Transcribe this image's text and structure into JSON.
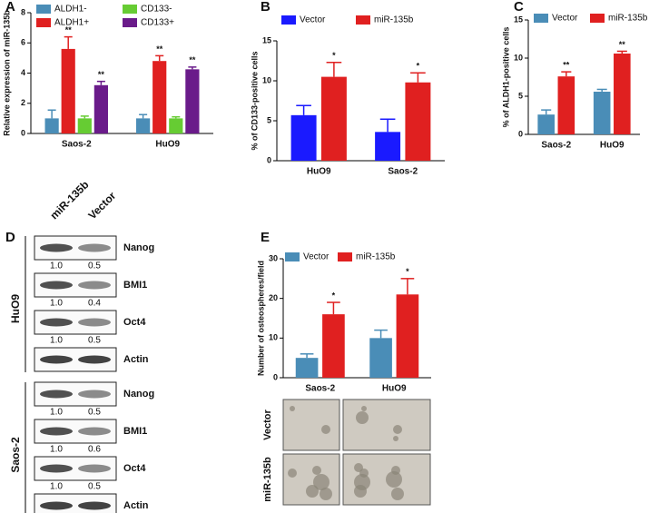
{
  "chart_data": [
    {
      "type": "bar",
      "label": "A",
      "y_label": "Relative expression of miR-135b",
      "categories": [
        "Saos-2",
        "HuO9"
      ],
      "series": [
        {
          "name": "ALDH1-",
          "color": "#4a8db7",
          "values": [
            1.0,
            1.0
          ],
          "errors": [
            0.55,
            0.25
          ],
          "sig": [
            null,
            null
          ]
        },
        {
          "name": "ALDH1+",
          "color": "#e02020",
          "values": [
            5.6,
            4.8
          ],
          "errors": [
            0.8,
            0.35
          ],
          "sig": [
            "**",
            "**"
          ]
        },
        {
          "name": "CD133-",
          "color": "#66cc33",
          "values": [
            1.0,
            1.0
          ],
          "errors": [
            0.15,
            0.1
          ],
          "sig": [
            null,
            null
          ]
        },
        {
          "name": "CD133+",
          "color": "#6a1b8a",
          "values": [
            3.2,
            4.25
          ],
          "errors": [
            0.25,
            0.15
          ],
          "sig": [
            "**",
            "**"
          ]
        }
      ],
      "ylim": [
        0,
        8
      ],
      "yticks": [
        0,
        2,
        4,
        6,
        8
      ]
    },
    {
      "type": "bar",
      "label": "B",
      "y_label": "% of CD133-positive cells",
      "categories": [
        "HuO9",
        "Saos-2"
      ],
      "series": [
        {
          "name": "Vector",
          "color": "#1a1aff",
          "values": [
            5.7,
            3.6
          ],
          "errors": [
            1.2,
            1.6
          ],
          "sig": [
            null,
            null
          ]
        },
        {
          "name": "miR-135b",
          "color": "#e02020",
          "values": [
            10.5,
            9.8
          ],
          "errors": [
            1.8,
            1.2
          ],
          "sig": [
            "*",
            "*"
          ]
        }
      ],
      "ylim": [
        0,
        15
      ],
      "yticks": [
        0,
        5,
        10,
        15
      ]
    },
    {
      "type": "bar",
      "label": "C",
      "y_label": "% of ALDH1-positive cells",
      "categories": [
        "Saos-2",
        "HuO9"
      ],
      "series": [
        {
          "name": "Vector",
          "color": "#4a8db7",
          "values": [
            2.6,
            5.6
          ],
          "errors": [
            0.6,
            0.3
          ],
          "sig": [
            null,
            null
          ]
        },
        {
          "name": "miR-135b",
          "color": "#e02020",
          "values": [
            7.6,
            10.6
          ],
          "errors": [
            0.6,
            0.3
          ],
          "sig": [
            "**",
            "**"
          ]
        }
      ],
      "ylim": [
        0,
        15
      ],
      "yticks": [
        0,
        5,
        10,
        15
      ]
    },
    {
      "type": "bar",
      "label": "E",
      "y_label": "Number of osteospheres/field",
      "categories": [
        "Saos-2",
        "HuO9"
      ],
      "series": [
        {
          "name": "Vector",
          "color": "#4a8db7",
          "values": [
            5,
            10
          ],
          "errors": [
            1,
            2
          ],
          "sig": [
            null,
            null
          ]
        },
        {
          "name": "miR-135b",
          "color": "#e02020",
          "values": [
            16,
            21
          ],
          "errors": [
            3,
            4
          ],
          "sig": [
            "*",
            "*"
          ]
        }
      ],
      "ylim": [
        0,
        30
      ],
      "yticks": [
        0,
        10,
        20,
        30
      ]
    }
  ],
  "blot": {
    "label": "D",
    "lanes": [
      "miR-135b",
      "Vector"
    ],
    "groups": [
      {
        "name": "HuO9",
        "rows": [
          {
            "label": "Nanog",
            "values": [
              "1.0",
              "0.5"
            ]
          },
          {
            "label": "BMI1",
            "values": [
              "1.0",
              "0.4"
            ]
          },
          {
            "label": "Oct4",
            "values": [
              "1.0",
              "0.5"
            ]
          },
          {
            "label": "Actin",
            "values": null
          }
        ]
      },
      {
        "name": "Saos-2",
        "rows": [
          {
            "label": "Nanog",
            "values": [
              "1.0",
              "0.5"
            ]
          },
          {
            "label": "BMI1",
            "values": [
              "1.0",
              "0.6"
            ]
          },
          {
            "label": "Oct4",
            "values": [
              "1.0",
              "0.5"
            ]
          },
          {
            "label": "Actin",
            "values": null
          }
        ]
      }
    ]
  },
  "spheres": {
    "rows": [
      "Vector",
      "miR-135b"
    ]
  }
}
